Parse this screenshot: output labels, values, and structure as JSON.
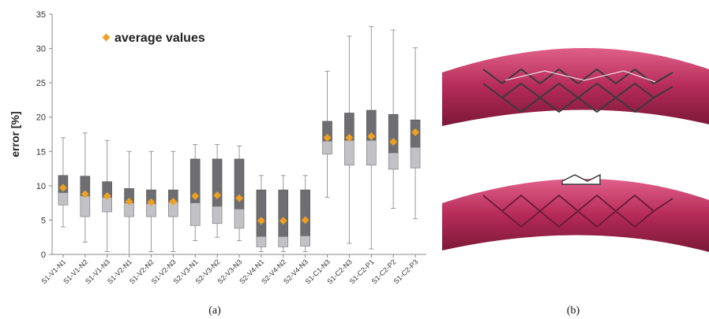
{
  "chart_data": {
    "type": "box",
    "ylabel": "error [%]",
    "ylim": [
      0,
      35
    ],
    "yticks": [
      0,
      5,
      10,
      15,
      20,
      25,
      30,
      35
    ],
    "legend": {
      "label": "average values",
      "placement": "top-left",
      "marker_color": "#f0a020"
    },
    "colors": {
      "upper_box": "#6e6e72",
      "lower_box": "#c2c2c6",
      "whisker": "#999999",
      "mean_marker": "#f0a020"
    },
    "categories": [
      "S1-V1-N1",
      "S1-V1-N2",
      "S1-V1-N3",
      "S1-V2-N1",
      "S1-V2-N2",
      "S1-V2-N3",
      "S2-V3-N1",
      "S2-V3-N2",
      "S2-V3-N3",
      "S2-V4-N1",
      "S2-V4-N2",
      "S2-V4-N3",
      "S1-C1-N3",
      "S1-C2-N3",
      "S1-C2-P1",
      "S1-C2-P2",
      "S1-C2-P3"
    ],
    "boxes": [
      {
        "min": 4.0,
        "q1": 7.2,
        "median": 9.0,
        "q3": 11.5,
        "max": 17.0,
        "mean": 9.7
      },
      {
        "min": 1.8,
        "q1": 5.5,
        "median": 8.5,
        "q3": 11.4,
        "max": 17.7,
        "mean": 8.8
      },
      {
        "min": 0.4,
        "q1": 6.2,
        "median": 8.3,
        "q3": 10.6,
        "max": 16.6,
        "mean": 8.5
      },
      {
        "min": 0.0,
        "q1": 5.5,
        "median": 7.5,
        "q3": 9.6,
        "max": 15.0,
        "mean": 7.7
      },
      {
        "min": 0.4,
        "q1": 5.5,
        "median": 7.4,
        "q3": 9.4,
        "max": 15.0,
        "mean": 7.6
      },
      {
        "min": 0.4,
        "q1": 5.5,
        "median": 7.6,
        "q3": 9.4,
        "max": 15.0,
        "mean": 7.7
      },
      {
        "min": 2.0,
        "q1": 4.2,
        "median": 7.5,
        "q3": 13.9,
        "max": 16.0,
        "mean": 8.5
      },
      {
        "min": 2.5,
        "q1": 4.5,
        "median": 7.0,
        "q3": 13.9,
        "max": 16.0,
        "mean": 8.6
      },
      {
        "min": 2.0,
        "q1": 3.8,
        "median": 6.6,
        "q3": 13.9,
        "max": 15.8,
        "mean": 8.2
      },
      {
        "min": 0.4,
        "q1": 1.1,
        "median": 2.6,
        "q3": 9.4,
        "max": 11.5,
        "mean": 4.9
      },
      {
        "min": 0.4,
        "q1": 1.1,
        "median": 2.6,
        "q3": 9.4,
        "max": 11.5,
        "mean": 4.9
      },
      {
        "min": 0.4,
        "q1": 1.2,
        "median": 2.7,
        "q3": 9.4,
        "max": 11.5,
        "mean": 5.0
      },
      {
        "min": 8.3,
        "q1": 14.6,
        "median": 16.5,
        "q3": 19.4,
        "max": 26.7,
        "mean": 17.0
      },
      {
        "min": 1.6,
        "q1": 13.0,
        "median": 16.6,
        "q3": 20.6,
        "max": 31.8,
        "mean": 17.0
      },
      {
        "min": 0.8,
        "q1": 13.0,
        "median": 16.6,
        "q3": 21.0,
        "max": 33.2,
        "mean": 17.2
      },
      {
        "min": 6.7,
        "q1": 12.4,
        "median": 14.8,
        "q3": 20.4,
        "max": 32.7,
        "mean": 16.4
      },
      {
        "min": 5.2,
        "q1": 12.6,
        "median": 15.6,
        "q3": 19.6,
        "max": 30.1,
        "mean": 17.8
      }
    ]
  },
  "captions": {
    "a": "(a)",
    "b": "(b)"
  },
  "illustration": {
    "tube_color": "#c23262",
    "stent_color": "#3a3a3e"
  }
}
